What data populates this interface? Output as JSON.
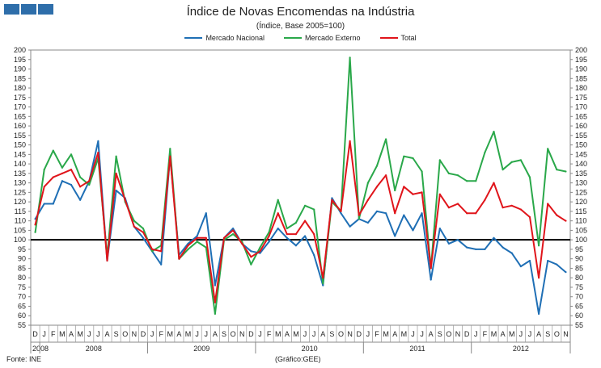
{
  "header": {
    "title": "Índice de Novas Encomendas na Indústria",
    "subtitle": "(Índice, Base 2005=100)",
    "brand_color": "#2e6eaa"
  },
  "footer": {
    "source": "Fonte: INE",
    "credit": "(Gráfico:GEE)"
  },
  "chart_data": {
    "type": "line",
    "title": "Índice de Novas Encomendas na Indústria",
    "subtitle": "(Índice, Base 2005=100)",
    "ylim": [
      55,
      200
    ],
    "ytick_step": 5,
    "reference_line": 100,
    "month_labels": [
      "D",
      "J",
      "F",
      "M",
      "A",
      "M",
      "J",
      "J",
      "A",
      "S",
      "O",
      "N",
      "D",
      "J",
      "F",
      "M",
      "A",
      "M",
      "J",
      "J",
      "A",
      "S",
      "O",
      "N",
      "D",
      "J",
      "F",
      "M",
      "A",
      "M",
      "J",
      "J",
      "A",
      "S",
      "O",
      "N",
      "D",
      "J",
      "F",
      "M",
      "A",
      "M",
      "J",
      "J",
      "A",
      "S",
      "O",
      "N",
      "D",
      "J",
      "F",
      "M",
      "A",
      "M",
      "J",
      "J",
      "A",
      "S",
      "O",
      "N"
    ],
    "year_labels": [
      {
        "label": "2008",
        "start": 0,
        "end": 0
      },
      {
        "label": "2008",
        "start": 1,
        "end": 12
      },
      {
        "label": "2009",
        "start": 13,
        "end": 24
      },
      {
        "label": "2010",
        "start": 25,
        "end": 36
      },
      {
        "label": "2011",
        "start": 37,
        "end": 48
      },
      {
        "label": "2012",
        "start": 49,
        "end": 59
      }
    ],
    "series": [
      {
        "name": "Mercado Nacional",
        "color": "#1f6fb5",
        "values": [
          111,
          119,
          119,
          131,
          129,
          121,
          131,
          152,
          89,
          126,
          122,
          107,
          101,
          94,
          87,
          144,
          92,
          98,
          102,
          114,
          76,
          101,
          106,
          98,
          94,
          93,
          99,
          106,
          101,
          97,
          102,
          92,
          76,
          122,
          114,
          107,
          111,
          109,
          115,
          114,
          102,
          113,
          105,
          114,
          79,
          106,
          98,
          100,
          96,
          95,
          95,
          101,
          96,
          93,
          86,
          89,
          61,
          89,
          87,
          83
        ]
      },
      {
        "name": "Mercado Externo",
        "color": "#2aa84a",
        "values": [
          104,
          137,
          147,
          138,
          145,
          133,
          129,
          143,
          91,
          144,
          120,
          110,
          106,
          94,
          97,
          148,
          90,
          95,
          99,
          96,
          61,
          100,
          103,
          99,
          87,
          96,
          104,
          121,
          106,
          109,
          118,
          116,
          77,
          120,
          115,
          196,
          111,
          130,
          139,
          153,
          126,
          144,
          143,
          136,
          85,
          142,
          135,
          134,
          131,
          131,
          146,
          157,
          137,
          141,
          142,
          133,
          97,
          148,
          137,
          136
        ]
      },
      {
        "name": "Total",
        "color": "#e0151b",
        "values": [
          108,
          128,
          133,
          135,
          137,
          128,
          131,
          146,
          89,
          135,
          121,
          107,
          104,
          95,
          94,
          144,
          90,
          97,
          101,
          101,
          67,
          101,
          105,
          98,
          91,
          94,
          102,
          114,
          103,
          103,
          110,
          103,
          80,
          121,
          115,
          152,
          113,
          121,
          128,
          134,
          114,
          128,
          124,
          125,
          85,
          124,
          117,
          119,
          114,
          114,
          121,
          130,
          117,
          118,
          116,
          112,
          80,
          119,
          113,
          110
        ]
      }
    ]
  }
}
